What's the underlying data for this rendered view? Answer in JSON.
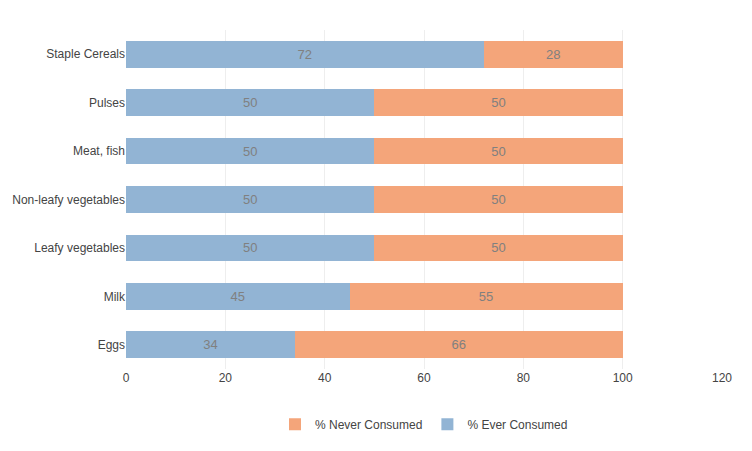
{
  "chart_data": {
    "type": "bar",
    "orientation": "horizontal",
    "stacked": true,
    "categories": [
      "Eggs",
      "Milk",
      "Leafy vegetables",
      "Non-leafy vegetables",
      "Meat, fish",
      "Pulses",
      "Staple Cereals"
    ],
    "series": [
      {
        "name": "% Ever Consumed",
        "color": "#92b4d4",
        "values": [
          34,
          45,
          50,
          50,
          50,
          50,
          72
        ]
      },
      {
        "name": "% Never Consumed",
        "color": "#f4a57a",
        "values": [
          66,
          55,
          50,
          50,
          50,
          50,
          28
        ]
      }
    ],
    "xlim": [
      0,
      120
    ],
    "xticks": [
      0,
      20,
      40,
      60,
      80,
      100,
      120
    ],
    "grid": true,
    "legend": "bottom",
    "data_labels": true
  }
}
